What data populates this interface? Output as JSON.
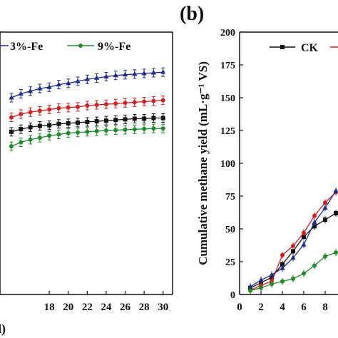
{
  "chart_data": [
    {
      "type": "line",
      "panel_label": "",
      "xlabel": "(d)",
      "ylabel": "",
      "xlim": [
        12.8,
        31
      ],
      "ylim": [
        0,
        200
      ],
      "x_ticks": [
        18,
        20,
        22,
        24,
        26,
        28,
        30
      ],
      "grid": false,
      "legend_position": "top",
      "legend": [
        "3%-Fe",
        "9%-Fe"
      ],
      "x": [
        14,
        15,
        16,
        17,
        18,
        19,
        20,
        21,
        22,
        23,
        24,
        25,
        26,
        27,
        28,
        29,
        30
      ],
      "series": [
        {
          "name": "3%-Fe",
          "color": "#1f2d8a",
          "marker": "triangle",
          "values": [
            150,
            153,
            155,
            157,
            158,
            160,
            161,
            162.5,
            164,
            165,
            166,
            167,
            167.5,
            168,
            168.5,
            169,
            169.5
          ]
        },
        {
          "name": "",
          "color": "#d42020",
          "marker": "circle",
          "values": [
            135,
            137.5,
            139,
            140,
            141,
            142,
            142.5,
            143,
            144,
            144.5,
            145,
            145.5,
            146,
            146.5,
            147,
            147.5,
            148
          ]
        },
        {
          "name": "",
          "color": "#111111",
          "marker": "square",
          "values": [
            124,
            126,
            127.5,
            128.5,
            129,
            130,
            130.5,
            131,
            131.5,
            132,
            132.5,
            133,
            133.5,
            134,
            134,
            134.5,
            134.5
          ]
        },
        {
          "name": "9%-Fe",
          "color": "#1f8a2a",
          "marker": "circle",
          "values": [
            113,
            116,
            118,
            119.5,
            121,
            122,
            123,
            123.5,
            124,
            124.5,
            125,
            125.3,
            125.6,
            125.9,
            126.2,
            126.5,
            126.5
          ]
        }
      ]
    },
    {
      "type": "line",
      "panel_label": "(b)",
      "xlabel": "",
      "ylabel": "Cumulative methane yield (mL·g⁻¹ VS)",
      "xlim": [
        0,
        9.2
      ],
      "ylim": [
        0,
        200
      ],
      "x_ticks": [
        0,
        2,
        4,
        6,
        8
      ],
      "y_ticks": [
        0,
        25,
        50,
        75,
        100,
        125,
        150,
        175,
        200
      ],
      "grid": false,
      "legend_position": "top-right",
      "legend": [
        "CK"
      ],
      "series": [
        {
          "name": "CK",
          "color": "#111111",
          "marker": "square",
          "x": [
            1,
            2,
            3,
            4,
            5,
            6,
            7,
            8,
            9
          ],
          "values": [
            5,
            9,
            13,
            23,
            33,
            44,
            52,
            57,
            62
          ]
        },
        {
          "name": "",
          "color": "#d42020",
          "marker": "circle",
          "x": [
            1,
            2,
            3,
            4,
            5,
            6,
            7,
            8,
            9
          ],
          "values": [
            3,
            7,
            10,
            30,
            37,
            47,
            60,
            70,
            78
          ]
        },
        {
          "name": "",
          "color": "#1f2d8a",
          "marker": "triangle",
          "x": [
            1,
            2,
            3,
            4,
            5,
            6,
            7,
            8,
            9
          ],
          "values": [
            6,
            11,
            15,
            20,
            28,
            38,
            55,
            66,
            79
          ]
        },
        {
          "name": "",
          "color": "#1f8a2a",
          "marker": "circle",
          "x": [
            1,
            2,
            3,
            4,
            5,
            6,
            7,
            8,
            9
          ],
          "values": [
            3,
            5,
            8,
            10,
            12,
            16,
            22,
            29,
            32
          ]
        }
      ]
    }
  ]
}
